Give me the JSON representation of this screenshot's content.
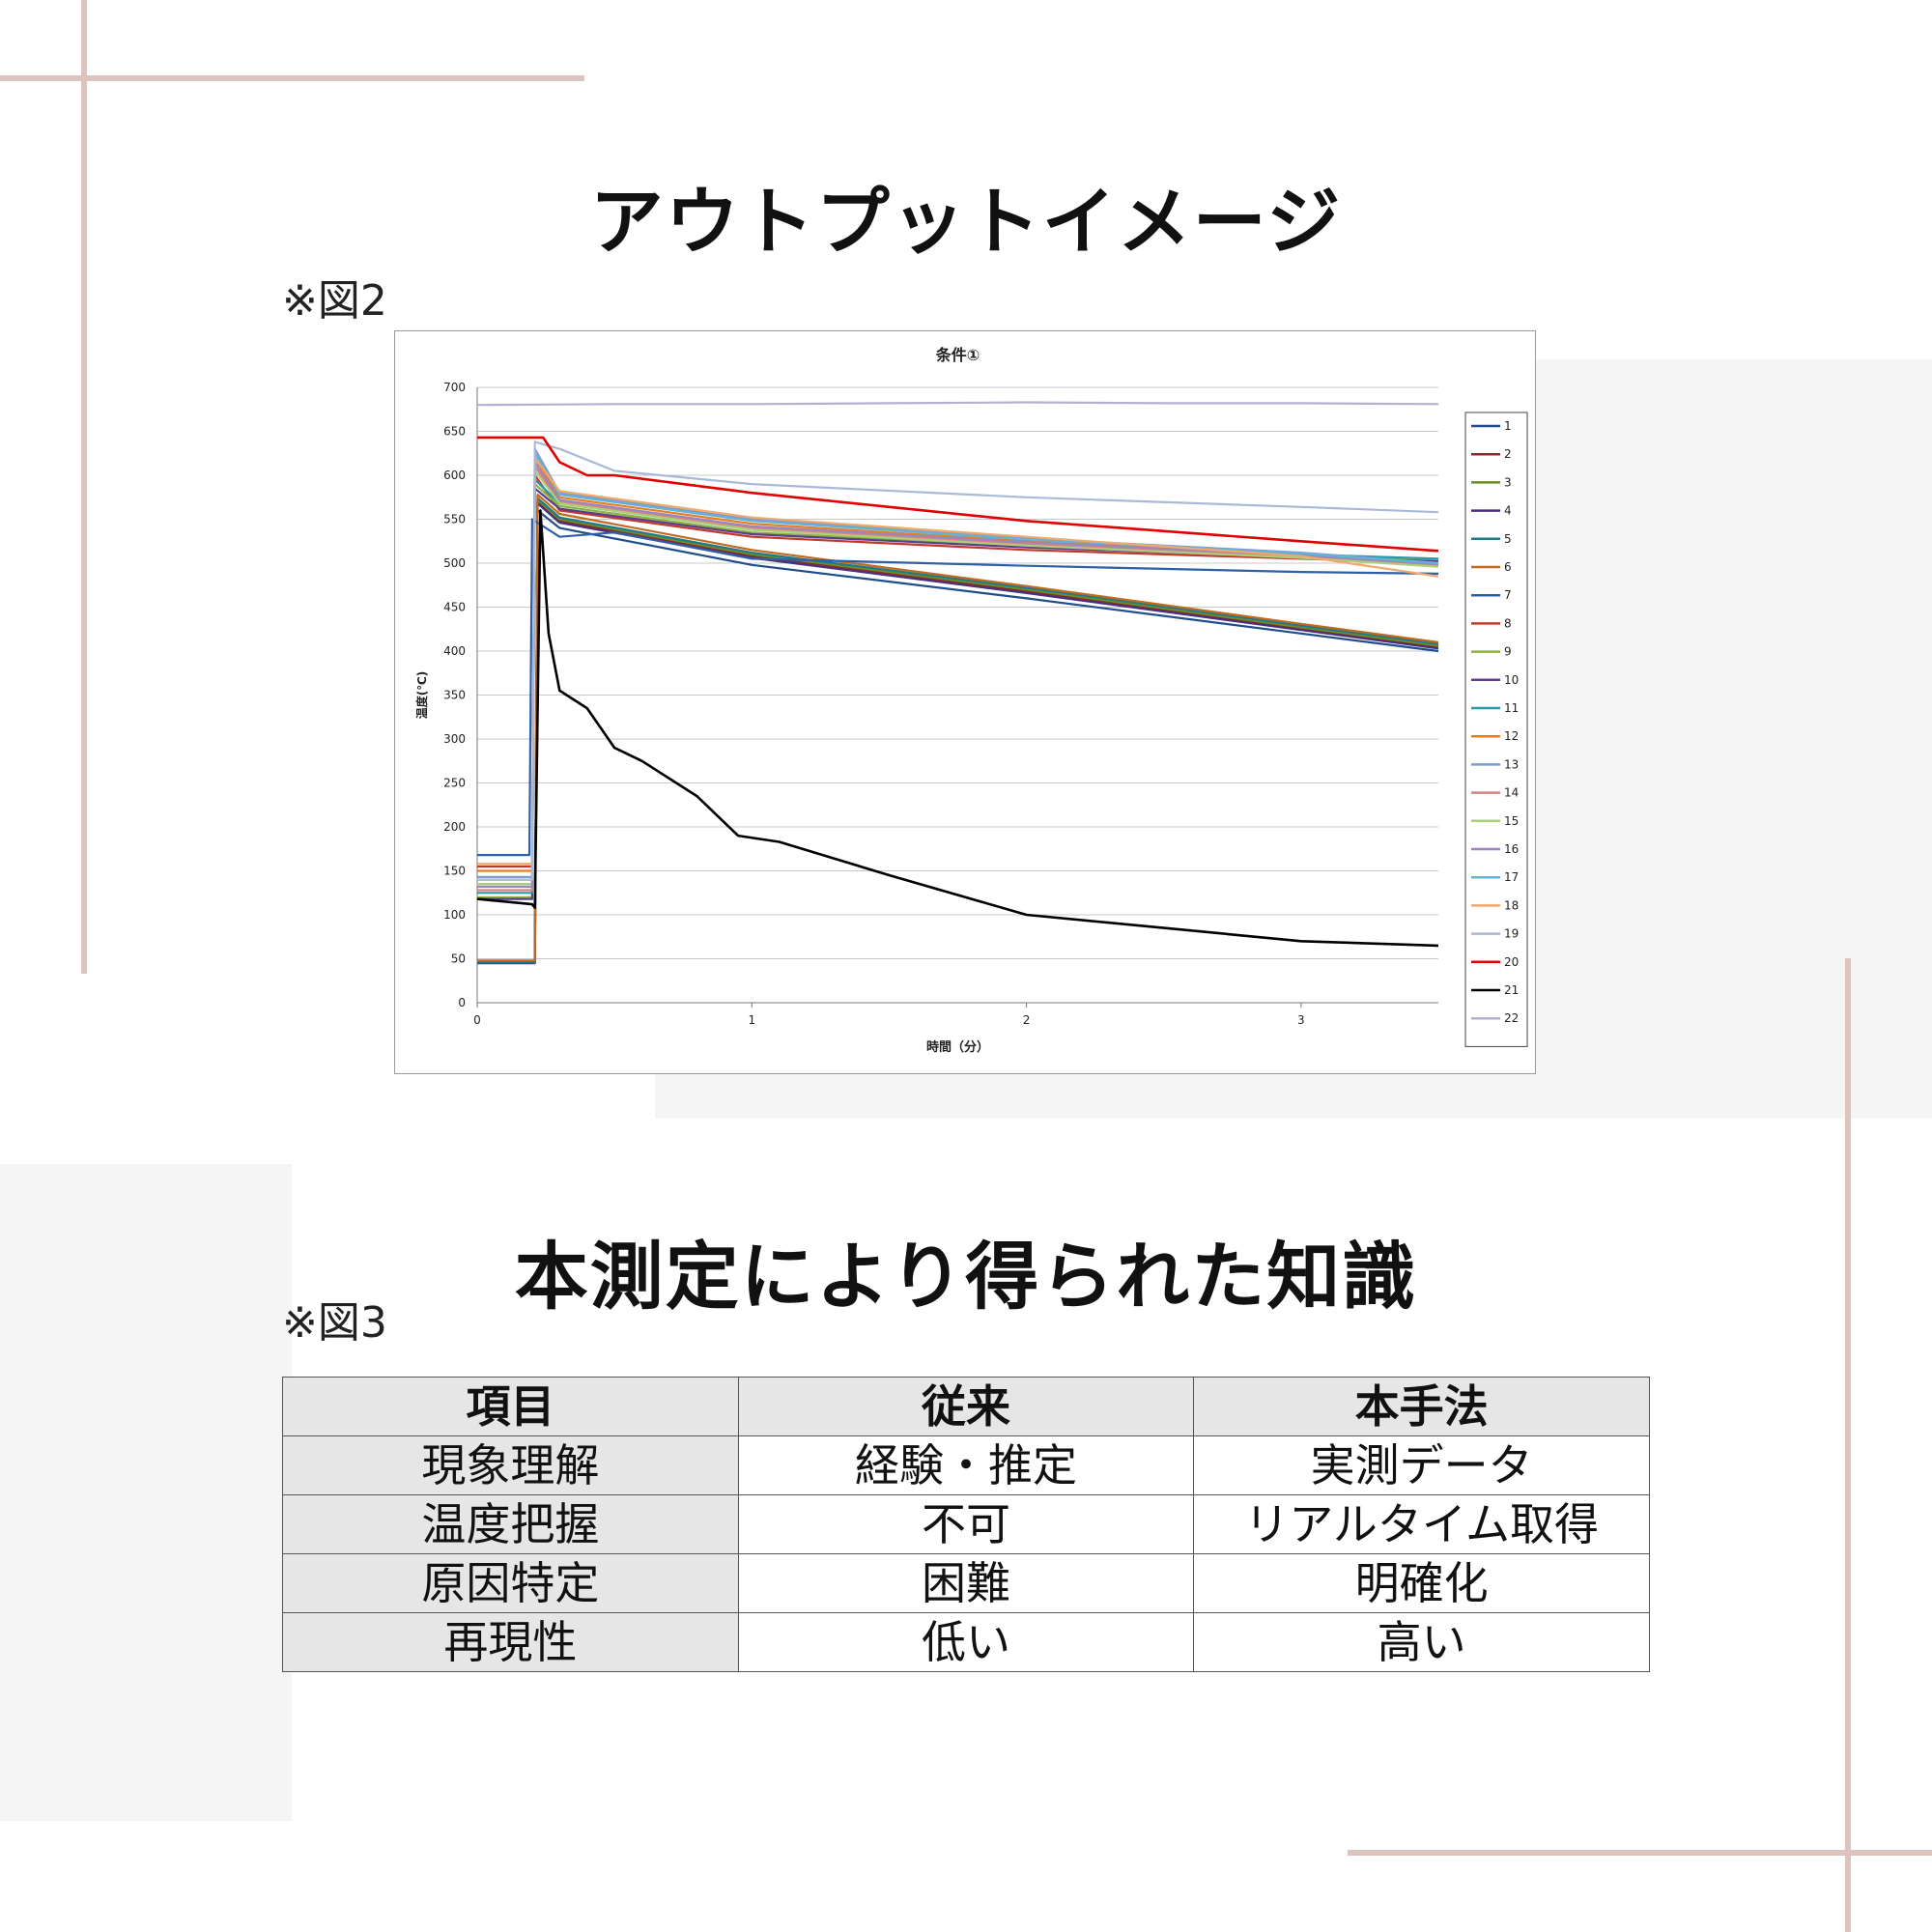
{
  "output_section": {
    "heading": "アウトプットイメージ",
    "figure_label": "※図2"
  },
  "knowledge_section": {
    "heading": "本測定により得られた知識",
    "figure_label": "※図3",
    "table": {
      "headers": [
        "項目",
        "従来",
        "本手法"
      ],
      "rows": [
        [
          "現象理解",
          "経験・推定",
          "実測データ"
        ],
        [
          "温度把握",
          "不可",
          "リアルタイム取得"
        ],
        [
          "原因特定",
          "困難",
          "明確化"
        ],
        [
          "再現性",
          "低い",
          "高い"
        ]
      ]
    }
  },
  "chart_data": {
    "type": "line",
    "title": "条件①",
    "xlabel": "時間（分）",
    "ylabel": "温度(℃)",
    "xlim": [
      0,
      3.5
    ],
    "ylim": [
      0,
      700
    ],
    "xticks": [
      0,
      1,
      2,
      3
    ],
    "yticks": [
      0,
      50,
      100,
      150,
      200,
      250,
      300,
      350,
      400,
      450,
      500,
      550,
      600,
      650,
      700
    ],
    "grid": "horizontal",
    "legend_position": "right",
    "series": [
      {
        "name": "1",
        "color": "#1f4e8c",
        "x": [
          0,
          0.21,
          0.22,
          0.3,
          1,
          2,
          3,
          3.5
        ],
        "y": [
          45,
          45,
          560,
          540,
          498,
          460,
          420,
          400
        ]
      },
      {
        "name": "2",
        "color": "#8b2a2a",
        "x": [
          0,
          0.21,
          0.22,
          0.3,
          1,
          2,
          3,
          3.5
        ],
        "y": [
          46,
          46,
          570,
          548,
          508,
          468,
          425,
          405
        ]
      },
      {
        "name": "3",
        "color": "#6b8e23",
        "x": [
          0,
          0.21,
          0.22,
          0.3,
          1,
          2,
          3,
          3.5
        ],
        "y": [
          47,
          47,
          572,
          550,
          510,
          470,
          427,
          406
        ]
      },
      {
        "name": "4",
        "color": "#4b2f7a",
        "x": [
          0,
          0.21,
          0.22,
          0.3,
          1,
          2,
          3,
          3.5
        ],
        "y": [
          45,
          45,
          568,
          546,
          506,
          466,
          424,
          403
        ]
      },
      {
        "name": "5",
        "color": "#1f7a8c",
        "x": [
          0,
          0.21,
          0.22,
          0.3,
          1,
          2,
          3,
          3.5
        ],
        "y": [
          46,
          46,
          574,
          552,
          512,
          472,
          429,
          408
        ]
      },
      {
        "name": "6",
        "color": "#c2691e",
        "x": [
          0,
          0.21,
          0.22,
          0.3,
          1,
          2,
          3,
          3.5
        ],
        "y": [
          48,
          48,
          578,
          556,
          515,
          474,
          431,
          410
        ]
      },
      {
        "name": "7",
        "color": "#2e5fa8",
        "x": [
          0,
          0.19,
          0.2,
          0.3,
          0.5,
          1,
          2,
          3,
          3.5
        ],
        "y": [
          168,
          168,
          550,
          530,
          535,
          505,
          497,
          490,
          488
        ]
      },
      {
        "name": "8",
        "color": "#c0392b",
        "x": [
          0,
          0.2,
          0.21,
          0.3,
          1,
          2,
          3,
          3.5
        ],
        "y": [
          155,
          155,
          600,
          560,
          530,
          515,
          505,
          500
        ]
      },
      {
        "name": "9",
        "color": "#8cb43c",
        "x": [
          0,
          0.2,
          0.21,
          0.3,
          1,
          2,
          3,
          3.5
        ],
        "y": [
          120,
          120,
          590,
          565,
          535,
          520,
          508,
          503
        ]
      },
      {
        "name": "10",
        "color": "#5b3f8c",
        "x": [
          0,
          0.2,
          0.21,
          0.3,
          1,
          2,
          3,
          3.5
        ],
        "y": [
          118,
          118,
          585,
          562,
          533,
          518,
          507,
          502
        ]
      },
      {
        "name": "11",
        "color": "#2a9aa8",
        "x": [
          0,
          0.2,
          0.21,
          0.3,
          1,
          2,
          3,
          3.5
        ],
        "y": [
          125,
          125,
          595,
          568,
          538,
          522,
          510,
          505
        ]
      },
      {
        "name": "12",
        "color": "#e67e22",
        "x": [
          0,
          0.2,
          0.21,
          0.3,
          1,
          2,
          3,
          3.5
        ],
        "y": [
          150,
          150,
          620,
          575,
          545,
          525,
          510,
          500
        ]
      },
      {
        "name": "13",
        "color": "#7f9cd0",
        "x": [
          0,
          0.2,
          0.21,
          0.3,
          1,
          2,
          3,
          3.5
        ],
        "y": [
          143,
          143,
          630,
          580,
          550,
          528,
          512,
          500
        ]
      },
      {
        "name": "14",
        "color": "#d98080",
        "x": [
          0,
          0.2,
          0.21,
          0.3,
          1,
          2,
          3,
          3.5
        ],
        "y": [
          128,
          128,
          610,
          570,
          540,
          522,
          508,
          498
        ]
      },
      {
        "name": "15",
        "color": "#a9cf7a",
        "x": [
          0,
          0.2,
          0.21,
          0.3,
          1,
          2,
          3,
          3.5
        ],
        "y": [
          135,
          135,
          605,
          568,
          538,
          520,
          506,
          496
        ]
      },
      {
        "name": "16",
        "color": "#9a86c0",
        "x": [
          0,
          0.2,
          0.21,
          0.3,
          1,
          2,
          3,
          3.5
        ],
        "y": [
          132,
          132,
          615,
          572,
          542,
          524,
          509,
          499
        ]
      },
      {
        "name": "17",
        "color": "#5fb4d8",
        "x": [
          0,
          0.2,
          0.21,
          0.3,
          1,
          2,
          3,
          3.5
        ],
        "y": [
          140,
          140,
          625,
          578,
          548,
          527,
          511,
          500
        ]
      },
      {
        "name": "18",
        "color": "#f2a869",
        "x": [
          0,
          0.2,
          0.21,
          0.3,
          1,
          2,
          3,
          3.5
        ],
        "y": [
          158,
          158,
          620,
          582,
          552,
          530,
          508,
          485
        ]
      },
      {
        "name": "19",
        "color": "#aab9d8",
        "x": [
          0,
          0.2,
          0.21,
          0.3,
          0.5,
          1,
          2,
          3,
          3.5
        ],
        "y": [
          140,
          140,
          638,
          630,
          605,
          590,
          575,
          564,
          558
        ]
      },
      {
        "name": "20",
        "color": "#e00000",
        "x": [
          0,
          0.24,
          0.3,
          0.4,
          0.5,
          1,
          2,
          3,
          3.5
        ],
        "y": [
          643,
          643,
          615,
          600,
          600,
          580,
          548,
          525,
          514
        ]
      },
      {
        "name": "21",
        "color": "#000000",
        "x": [
          0,
          0.2,
          0.21,
          0.23,
          0.26,
          0.3,
          0.4,
          0.5,
          0.6,
          0.8,
          0.95,
          1.1,
          1.5,
          2,
          2.5,
          3,
          3.5
        ],
        "y": [
          118,
          112,
          108,
          560,
          420,
          355,
          335,
          290,
          275,
          235,
          190,
          183,
          145,
          100,
          85,
          70,
          65
        ]
      },
      {
        "name": "22",
        "color": "#b7aed0",
        "x": [
          0,
          0.5,
          1,
          1.5,
          2,
          2.5,
          3,
          3.5
        ],
        "y": [
          680,
          681,
          681,
          682,
          683,
          682,
          682,
          681
        ]
      }
    ]
  }
}
